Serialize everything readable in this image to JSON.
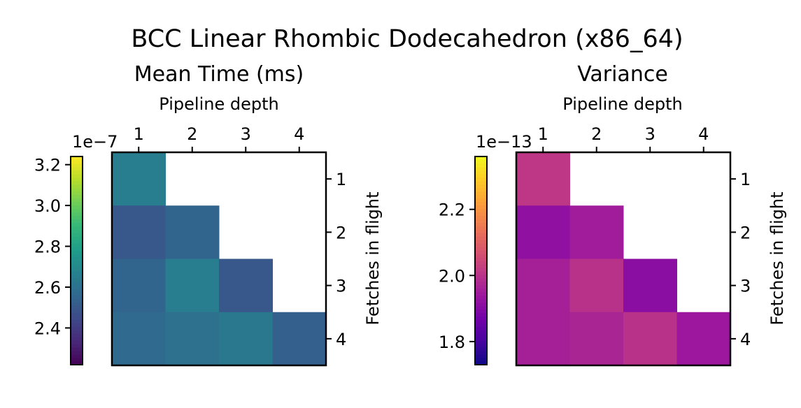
{
  "figure": {
    "title": "BCC Linear Rhombic Dodecahedron (x86_64)"
  },
  "chart_data": [
    {
      "type": "heatmap",
      "id": "mean",
      "title": "Mean Time (ms)",
      "xlabel": "Pipeline depth",
      "ylabel": "Fetches in flight",
      "x_ticks": [
        "1",
        "2",
        "3",
        "4"
      ],
      "y_ticks": [
        "1",
        "2",
        "3",
        "4"
      ],
      "colormap": "viridis",
      "clim": [
        2.22e-07,
        3.24e-07
      ],
      "colorbar_ticks": [
        "2.4",
        "2.6",
        "2.8",
        "3.0",
        "3.2"
      ],
      "colorbar_tick_values": [
        2.4e-07,
        2.6e-07,
        2.8e-07,
        3e-07,
        3.2e-07
      ],
      "colorbar_offset": "1e−7",
      "values": [
        [
          2.65e-07,
          null,
          null,
          null
        ],
        [
          2.5e-07,
          2.55e-07,
          null,
          null
        ],
        [
          2.55e-07,
          2.65e-07,
          2.5e-07,
          null
        ],
        [
          2.57e-07,
          2.6e-07,
          2.63e-07,
          2.53e-07
        ]
      ]
    },
    {
      "type": "heatmap",
      "id": "variance",
      "title": "Variance",
      "xlabel": "Pipeline depth",
      "ylabel": "Fetches in flight",
      "x_ticks": [
        "1",
        "2",
        "3",
        "4"
      ],
      "y_ticks": [
        "1",
        "2",
        "3",
        "4"
      ],
      "colormap": "plasma",
      "clim": [
        1.73e-13,
        2.36e-13
      ],
      "colorbar_ticks": [
        "1.8",
        "2.0",
        "2.2"
      ],
      "colorbar_tick_values": [
        1.8e-13,
        2e-13,
        2.2e-13
      ],
      "colorbar_offset": "1e−13",
      "values": [
        [
          2.01e-13,
          null,
          null,
          null
        ],
        [
          1.92e-13,
          1.95e-13,
          null,
          null
        ],
        [
          1.96e-13,
          2e-13,
          1.91e-13,
          null
        ],
        [
          1.96e-13,
          1.97e-13,
          2e-13,
          1.94e-13
        ]
      ]
    }
  ]
}
